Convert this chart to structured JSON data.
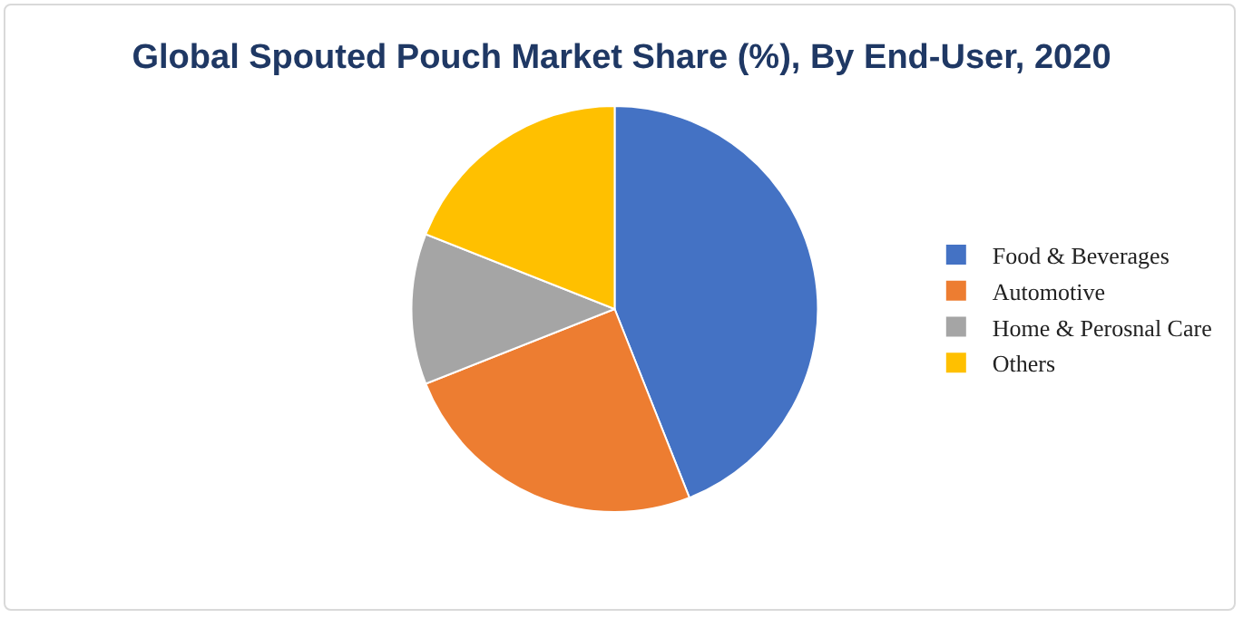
{
  "chart_data": {
    "type": "pie",
    "title": "Global Spouted Pouch Market Share (%), By End-User, 2020",
    "categories": [
      "Food & Beverages",
      "Automotive",
      "Home & Perosnal Care",
      "Others"
    ],
    "values": [
      44,
      25,
      12,
      19
    ],
    "colors": [
      "#4472c4",
      "#ed7d31",
      "#a5a5a5",
      "#ffc000"
    ],
    "legend": "right"
  }
}
